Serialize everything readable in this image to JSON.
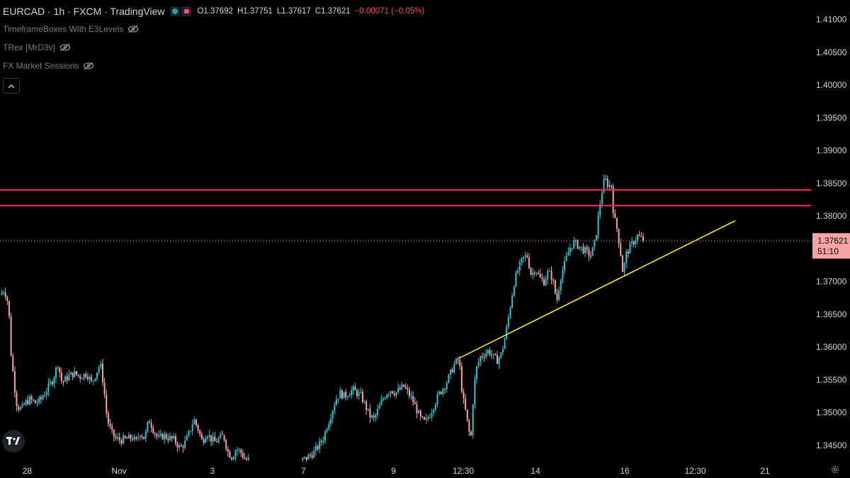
{
  "header": {
    "symbol": "EURCAD · 1h · FXCM · TradingView",
    "open": "O1.37692",
    "high": "H1.37751",
    "low": "L1.37617",
    "close": "C1.37621",
    "change": "−0.00071 (−0.05%)"
  },
  "indicators": [
    {
      "label": "TimeframeBoxes With E3Levels"
    },
    {
      "label": "TRex [MrD3v]"
    },
    {
      "label": "FX Market Sessions"
    }
  ],
  "price_label": {
    "price": "1.37621",
    "countdown": "51:10"
  },
  "colors": {
    "background": "#000000",
    "up": "#26c6da",
    "down": "#f8a3a3",
    "resistance": "#ff2e63",
    "trendline": "#ffeb3b",
    "price_label_bg": "#f8a3a3"
  },
  "chart_data": {
    "type": "candlestick",
    "title": "",
    "xlabel": "",
    "ylabel": "",
    "ylim": [
      1.3425,
      1.413
    ],
    "y_ticks": [
      1.345,
      1.35,
      1.355,
      1.36,
      1.365,
      1.37,
      1.375,
      1.38,
      1.385,
      1.39,
      1.395,
      1.4,
      1.405,
      1.41
    ],
    "y_tick_labels": [
      "1.34500",
      "1.35000",
      "1.35500",
      "1.36000",
      "1.36500",
      "1.37000",
      "1.37500",
      "1.38000",
      "1.38500",
      "1.39000",
      "1.39500",
      "1.40000",
      "1.40500",
      "1.41000"
    ],
    "x_tick_labels": [
      {
        "label": "28",
        "pos": 0.032
      },
      {
        "label": "Nov",
        "pos": 0.14
      },
      {
        "label": "3",
        "pos": 0.25
      },
      {
        "label": "7",
        "pos": 0.357
      },
      {
        "label": "9",
        "pos": 0.463
      },
      {
        "label": "12:30",
        "pos": 0.545
      },
      {
        "label": "14",
        "pos": 0.63
      },
      {
        "label": "16",
        "pos": 0.735
      },
      {
        "label": "12:30",
        "pos": 0.818
      },
      {
        "label": "21",
        "pos": 0.9
      }
    ],
    "horizontal_lines": [
      1.384,
      1.3816
    ],
    "trendline": {
      "x0": 0.54,
      "y0": 1.3583,
      "x1": 0.865,
      "y1": 1.3793
    },
    "last_price": 1.37621,
    "gap": {
      "from": 0.293,
      "to": 0.355
    },
    "price_path": [
      [
        0.0,
        1.368
      ],
      [
        0.005,
        1.3688
      ],
      [
        0.01,
        1.3665
      ],
      [
        0.013,
        1.359
      ],
      [
        0.017,
        1.354
      ],
      [
        0.02,
        1.351
      ],
      [
        0.025,
        1.3505
      ],
      [
        0.03,
        1.3515
      ],
      [
        0.035,
        1.352
      ],
      [
        0.042,
        1.3515
      ],
      [
        0.048,
        1.352
      ],
      [
        0.055,
        1.3535
      ],
      [
        0.062,
        1.355
      ],
      [
        0.068,
        1.3575
      ],
      [
        0.073,
        1.3545
      ],
      [
        0.08,
        1.3555
      ],
      [
        0.087,
        1.356
      ],
      [
        0.095,
        1.3555
      ],
      [
        0.102,
        1.356
      ],
      [
        0.108,
        1.3545
      ],
      [
        0.113,
        1.356
      ],
      [
        0.118,
        1.3575
      ],
      [
        0.122,
        1.354
      ],
      [
        0.126,
        1.349
      ],
      [
        0.131,
        1.347
      ],
      [
        0.136,
        1.346
      ],
      [
        0.143,
        1.3458
      ],
      [
        0.15,
        1.346
      ],
      [
        0.156,
        1.3462
      ],
      [
        0.16,
        1.3455
      ],
      [
        0.165,
        1.347
      ],
      [
        0.17,
        1.346
      ],
      [
        0.175,
        1.349
      ],
      [
        0.18,
        1.3475
      ],
      [
        0.186,
        1.346
      ],
      [
        0.192,
        1.3465
      ],
      [
        0.198,
        1.3462
      ],
      [
        0.205,
        1.3458
      ],
      [
        0.212,
        1.3445
      ],
      [
        0.218,
        1.3455
      ],
      [
        0.223,
        1.347
      ],
      [
        0.228,
        1.349
      ],
      [
        0.233,
        1.3475
      ],
      [
        0.238,
        1.3455
      ],
      [
        0.243,
        1.347
      ],
      [
        0.248,
        1.346
      ],
      [
        0.253,
        1.3455
      ],
      [
        0.258,
        1.346
      ],
      [
        0.263,
        1.3465
      ],
      [
        0.268,
        1.344
      ],
      [
        0.273,
        1.3432
      ],
      [
        0.278,
        1.3445
      ],
      [
        0.283,
        1.344
      ],
      [
        0.288,
        1.343
      ],
      [
        0.29,
        1.3428
      ],
      [
        0.355,
        1.3428
      ],
      [
        0.36,
        1.343
      ],
      [
        0.365,
        1.3435
      ],
      [
        0.37,
        1.344
      ],
      [
        0.375,
        1.345
      ],
      [
        0.38,
        1.346
      ],
      [
        0.385,
        1.348
      ],
      [
        0.39,
        1.35
      ],
      [
        0.395,
        1.352
      ],
      [
        0.4,
        1.353
      ],
      [
        0.405,
        1.3525
      ],
      [
        0.41,
        1.353
      ],
      [
        0.415,
        1.3535
      ],
      [
        0.42,
        1.353
      ],
      [
        0.425,
        1.3525
      ],
      [
        0.43,
        1.351
      ],
      [
        0.435,
        1.3495
      ],
      [
        0.44,
        1.349
      ],
      [
        0.445,
        1.3505
      ],
      [
        0.45,
        1.352
      ],
      [
        0.455,
        1.353
      ],
      [
        0.46,
        1.3535
      ],
      [
        0.465,
        1.353
      ],
      [
        0.47,
        1.3535
      ],
      [
        0.475,
        1.354
      ],
      [
        0.48,
        1.353
      ],
      [
        0.485,
        1.352
      ],
      [
        0.49,
        1.3505
      ],
      [
        0.495,
        1.349
      ],
      [
        0.5,
        1.3485
      ],
      [
        0.505,
        1.3495
      ],
      [
        0.51,
        1.351
      ],
      [
        0.515,
        1.3525
      ],
      [
        0.52,
        1.3535
      ],
      [
        0.525,
        1.3545
      ],
      [
        0.53,
        1.356
      ],
      [
        0.535,
        1.3575
      ],
      [
        0.54,
        1.3582
      ],
      [
        0.544,
        1.3525
      ],
      [
        0.548,
        1.35
      ],
      [
        0.551,
        1.3475
      ],
      [
        0.554,
        1.346
      ],
      [
        0.557,
        1.353
      ],
      [
        0.56,
        1.3565
      ],
      [
        0.565,
        1.3585
      ],
      [
        0.57,
        1.359
      ],
      [
        0.575,
        1.3595
      ],
      [
        0.58,
        1.3585
      ],
      [
        0.585,
        1.358
      ],
      [
        0.59,
        1.359
      ],
      [
        0.595,
        1.362
      ],
      [
        0.6,
        1.366
      ],
      [
        0.605,
        1.37
      ],
      [
        0.61,
        1.372
      ],
      [
        0.615,
        1.3735
      ],
      [
        0.62,
        1.374
      ],
      [
        0.625,
        1.371
      ],
      [
        0.63,
        1.372
      ],
      [
        0.635,
        1.3705
      ],
      [
        0.64,
        1.37
      ],
      [
        0.645,
        1.3715
      ],
      [
        0.65,
        1.3705
      ],
      [
        0.655,
        1.367
      ],
      [
        0.66,
        1.371
      ],
      [
        0.665,
        1.373
      ],
      [
        0.67,
        1.375
      ],
      [
        0.675,
        1.376
      ],
      [
        0.68,
        1.3755
      ],
      [
        0.685,
        1.375
      ],
      [
        0.69,
        1.3745
      ],
      [
        0.695,
        1.374
      ],
      [
        0.7,
        1.376
      ],
      [
        0.704,
        1.38
      ],
      [
        0.707,
        1.383
      ],
      [
        0.71,
        1.385
      ],
      [
        0.713,
        1.3855
      ],
      [
        0.716,
        1.3845
      ],
      [
        0.719,
        1.385
      ],
      [
        0.722,
        1.38
      ],
      [
        0.726,
        1.378
      ],
      [
        0.73,
        1.3745
      ],
      [
        0.733,
        1.371
      ],
      [
        0.736,
        1.374
      ],
      [
        0.74,
        1.375
      ],
      [
        0.745,
        1.376
      ],
      [
        0.75,
        1.377
      ],
      [
        0.755,
        1.3765
      ],
      [
        0.758,
        1.3762
      ]
    ]
  }
}
